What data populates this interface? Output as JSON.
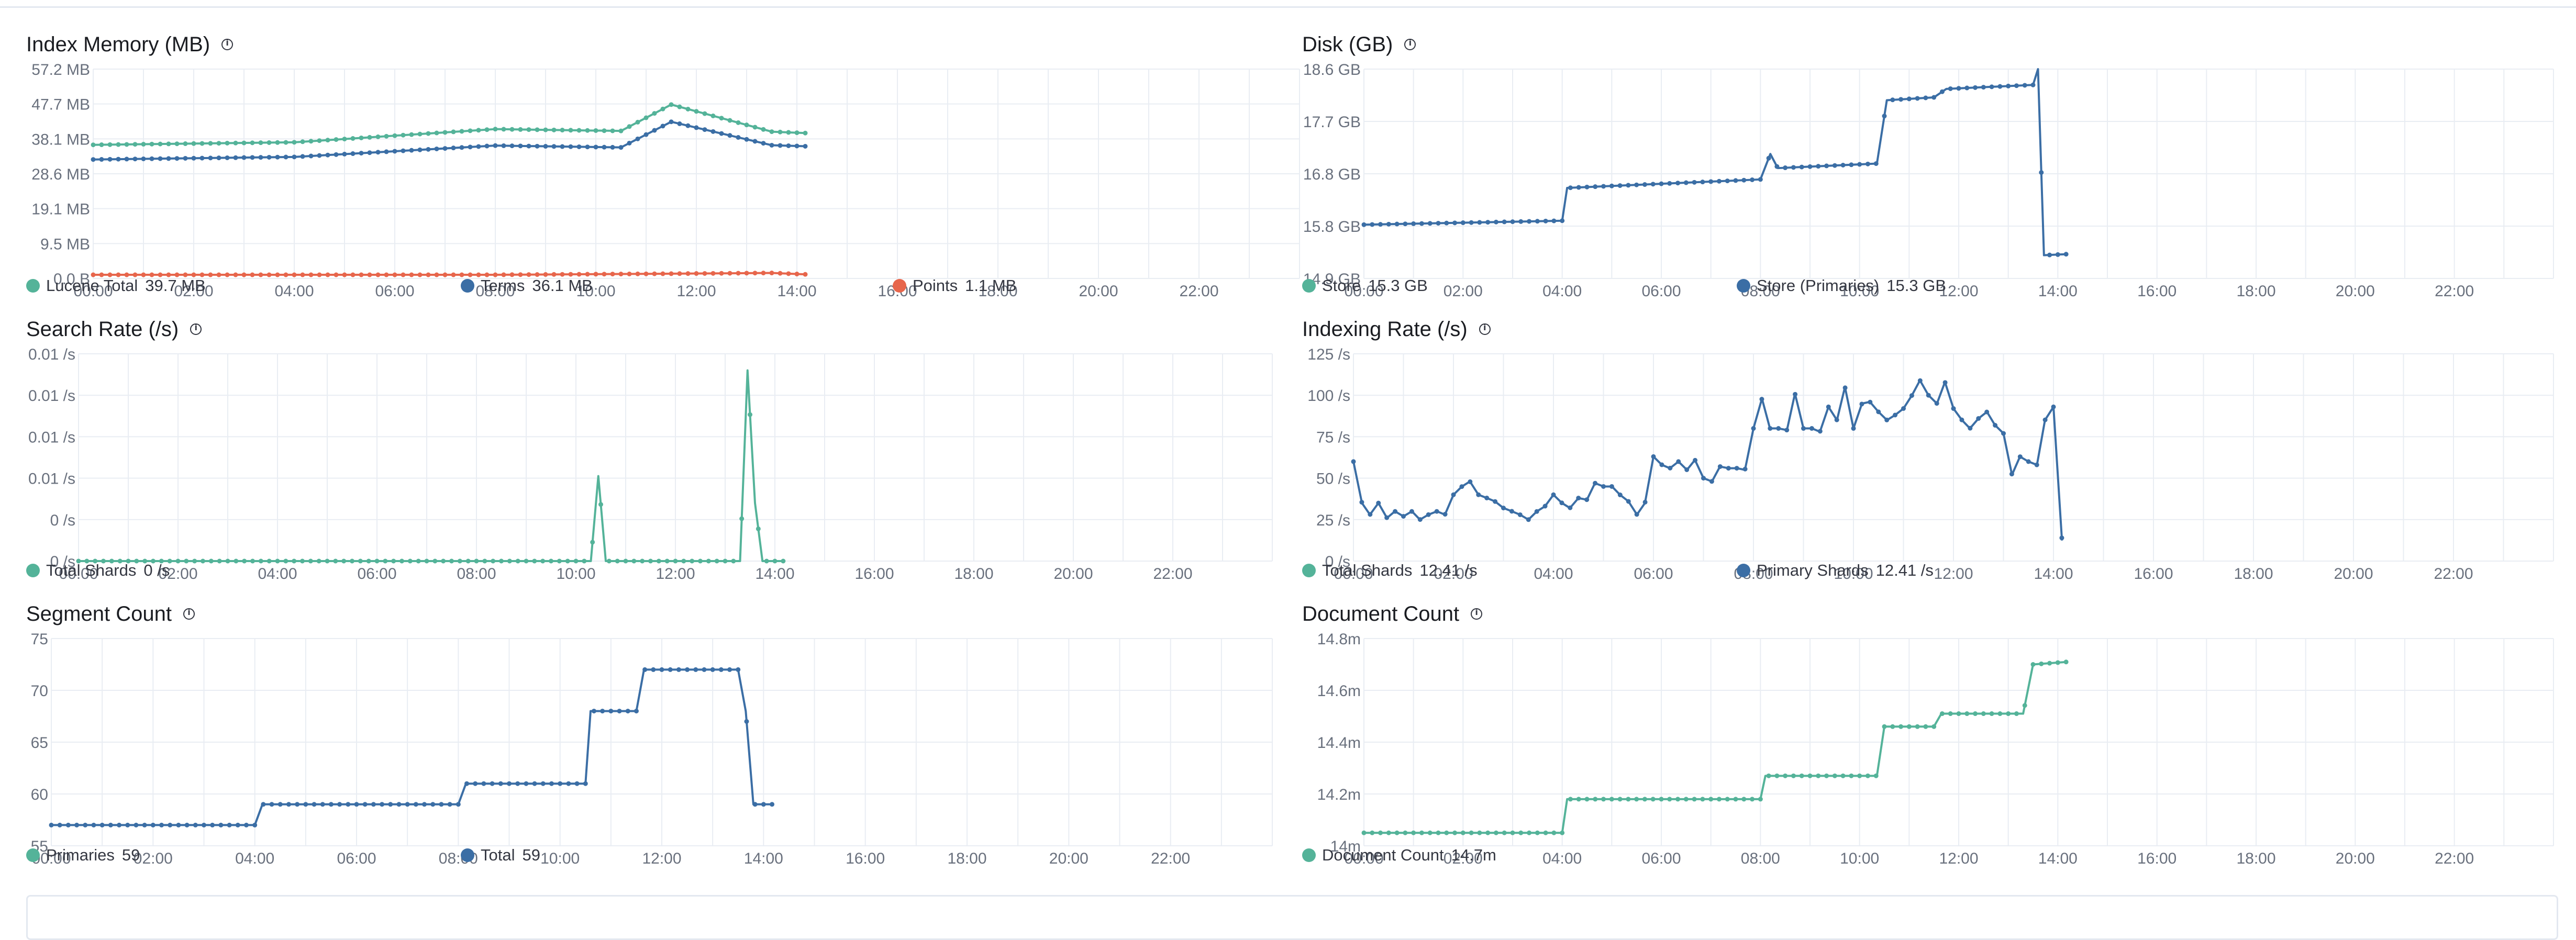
{
  "panels": [
    {
      "id": "index-memory",
      "title": "Index Memory (MB)",
      "legend": [
        {
          "name": "Lucene Total",
          "value": "39.7 MB",
          "color": "#54b399"
        },
        {
          "name": "Terms",
          "value": "36.1 MB",
          "color": "#3b6ea5"
        },
        {
          "name": "Points",
          "value": "1.1 MB",
          "color": "#e7664c"
        }
      ]
    },
    {
      "id": "disk",
      "title": "Disk (GB)",
      "legend": [
        {
          "name": "Store",
          "value": "15.3 GB",
          "color": "#54b399"
        },
        {
          "name": "Store (Primaries)",
          "value": "15.3 GB",
          "color": "#3b6ea5"
        }
      ]
    },
    {
      "id": "search-rate",
      "title": "Search Rate (/s)",
      "legend": [
        {
          "name": "Total Shards",
          "value": "0 /s",
          "color": "#54b399"
        }
      ]
    },
    {
      "id": "indexing-rate",
      "title": "Indexing Rate (/s)",
      "legend": [
        {
          "name": "Total Shards",
          "value": "12.41 /s",
          "color": "#54b399"
        },
        {
          "name": "Primary Shards",
          "value": "12.41 /s",
          "color": "#3b6ea5"
        }
      ]
    },
    {
      "id": "segment-count",
      "title": "Segment Count",
      "legend": [
        {
          "name": "Primaries",
          "value": "59",
          "color": "#54b399"
        },
        {
          "name": "Total",
          "value": "59",
          "color": "#3b6ea5"
        }
      ]
    },
    {
      "id": "document-count",
      "title": "Document Count",
      "legend": [
        {
          "name": "Document Count",
          "value": "14.7m",
          "color": "#54b399"
        }
      ]
    }
  ],
  "chart_data": [
    {
      "type": "line",
      "title": "Index Memory (MB)",
      "x_ticks": [
        "00:00",
        "02:00",
        "04:00",
        "06:00",
        "08:00",
        "10:00",
        "12:00",
        "14:00",
        "16:00",
        "18:00",
        "20:00",
        "22:00"
      ],
      "xlim_hours": [
        0,
        24
      ],
      "y_ticks": [
        "0.0 B",
        "9.5 MB",
        "19.1 MB",
        "28.6 MB",
        "38.1 MB",
        "47.7 MB",
        "57.2 MB"
      ],
      "ylim": [
        0,
        57.2
      ],
      "grid": true,
      "series": [
        {
          "name": "Lucene Total",
          "color": "#54b399",
          "hours": [
            0,
            4,
            8,
            10.5,
            11.5,
            13.5,
            14.2
          ],
          "values": [
            36.5,
            37.2,
            40.8,
            40.3,
            47.5,
            40.1,
            39.7
          ]
        },
        {
          "name": "Terms",
          "color": "#3b6ea5",
          "hours": [
            0,
            4,
            8,
            10.5,
            11.5,
            13.5,
            14.2
          ],
          "values": [
            32.5,
            33.2,
            36.3,
            35.8,
            42.8,
            36.4,
            36.1
          ]
        },
        {
          "name": "Points",
          "color": "#e7664c",
          "hours": [
            0,
            4,
            8,
            11.5,
            13.5,
            14.2
          ],
          "values": [
            1.0,
            1.0,
            1.0,
            1.3,
            1.5,
            1.1
          ]
        }
      ]
    },
    {
      "type": "line",
      "title": "Disk (GB)",
      "x_ticks": [
        "00:00",
        "02:00",
        "04:00",
        "06:00",
        "08:00",
        "10:00",
        "12:00",
        "14:00",
        "16:00",
        "18:00",
        "20:00",
        "22:00"
      ],
      "xlim_hours": [
        0,
        24
      ],
      "y_ticks": [
        "14.9 GB",
        "15.8 GB",
        "16.8 GB",
        "17.7 GB",
        "18.6 GB"
      ],
      "ylim": [
        14.9,
        18.6
      ],
      "grid": true,
      "series": [
        {
          "name": "Store (Primaries)",
          "color": "#3b6ea5",
          "hours": [
            0,
            4,
            4.1,
            8,
            8.2,
            8.35,
            10.35,
            10.55,
            11.5,
            11.75,
            13.5,
            13.6,
            13.72,
            14.2
          ],
          "values": [
            15.85,
            15.92,
            16.5,
            16.65,
            17.1,
            16.85,
            16.93,
            18.05,
            18.1,
            18.25,
            18.32,
            18.6,
            15.31,
            15.33
          ]
        },
        {
          "name": "Store",
          "color": "#54b399",
          "hours": [],
          "values": []
        }
      ]
    },
    {
      "type": "line",
      "title": "Search Rate (/s)",
      "x_ticks": [
        "00:00",
        "02:00",
        "04:00",
        "06:00",
        "08:00",
        "10:00",
        "12:00",
        "14:00",
        "16:00",
        "18:00",
        "20:00",
        "22:00"
      ],
      "xlim_hours": [
        0,
        24
      ],
      "y_ticks": [
        "0 /s",
        "0 /s",
        "0.01 /s",
        "0.01 /s",
        "0.01 /s",
        "0.01 /s"
      ],
      "ylim": [
        0,
        0.01
      ],
      "grid": true,
      "series": [
        {
          "name": "Total Shards",
          "color": "#54b399",
          "hours": [
            0,
            10.3,
            10.45,
            10.6,
            13.3,
            13.45,
            13.6,
            13.75,
            14.2
          ],
          "values": [
            0,
            0,
            0.0041,
            0,
            0,
            0.0092,
            0.0028,
            0,
            0
          ]
        }
      ]
    },
    {
      "type": "line",
      "title": "Indexing Rate (/s)",
      "x_ticks": [
        "00:00",
        "02:00",
        "04:00",
        "06:00",
        "08:00",
        "10:00",
        "12:00",
        "14:00",
        "16:00",
        "18:00",
        "20:00",
        "22:00"
      ],
      "xlim_hours": [
        0,
        24
      ],
      "y_ticks": [
        "0 /s",
        "25 /s",
        "50 /s",
        "75 /s",
        "100 /s",
        "125 /s"
      ],
      "ylim": [
        0,
        125
      ],
      "grid": true,
      "series": [
        {
          "name": "Primary Shards",
          "color": "#3b6ea5",
          "hours": [
            0,
            0.17,
            0.33,
            0.5,
            0.67,
            0.83,
            1,
            1.17,
            1.33,
            1.5,
            1.67,
            1.83,
            2,
            2.17,
            2.33,
            2.5,
            2.67,
            2.83,
            3,
            3.17,
            3.33,
            3.5,
            3.67,
            3.83,
            4,
            4.17,
            4.33,
            4.5,
            4.67,
            4.83,
            5,
            5.17,
            5.33,
            5.5,
            5.67,
            5.83,
            6,
            6.17,
            6.33,
            6.5,
            6.67,
            6.83,
            7,
            7.17,
            7.33,
            7.5,
            7.67,
            7.83,
            8,
            8.17,
            8.33,
            8.5,
            8.67,
            8.83,
            9,
            9.17,
            9.33,
            9.5,
            9.67,
            9.83,
            10,
            10.17,
            10.33,
            10.5,
            10.67,
            10.83,
            11,
            11.17,
            11.33,
            11.5,
            11.67,
            11.83,
            12,
            12.17,
            12.33,
            12.5,
            12.67,
            12.83,
            13,
            13.17,
            13.33,
            13.5,
            13.67,
            13.83,
            14,
            14.17
          ],
          "values": [
            60,
            35,
            28,
            35,
            26,
            30,
            27,
            30,
            25,
            28,
            30,
            28,
            40,
            45,
            48,
            40,
            38,
            36,
            32,
            30,
            28,
            25,
            30,
            33,
            40,
            35,
            32,
            38,
            37,
            47,
            45,
            45,
            40,
            36,
            28,
            35,
            63,
            58,
            56,
            60,
            55,
            61,
            50,
            48,
            57,
            56,
            56,
            55,
            80,
            98,
            80,
            80,
            79,
            101,
            80,
            80,
            78,
            93,
            85,
            105,
            80,
            95,
            96,
            90,
            85,
            88,
            92,
            100,
            109,
            100,
            95,
            108,
            92,
            85,
            80,
            86,
            90,
            82,
            77,
            52,
            63,
            60,
            58,
            85,
            93,
            12.4
          ]
        },
        {
          "name": "Total Shards",
          "color": "#54b399",
          "hours": [],
          "values": []
        }
      ]
    },
    {
      "type": "line",
      "title": "Segment Count",
      "x_ticks": [
        "00:00",
        "02:00",
        "04:00",
        "06:00",
        "08:00",
        "10:00",
        "12:00",
        "14:00",
        "16:00",
        "18:00",
        "20:00",
        "22:00"
      ],
      "xlim_hours": [
        0,
        24
      ],
      "y_ticks": [
        "55",
        "60",
        "65",
        "70",
        "75"
      ],
      "ylim": [
        55,
        75
      ],
      "grid": true,
      "series": [
        {
          "name": "Total",
          "color": "#3b6ea5",
          "hours": [
            0,
            4,
            4.15,
            8,
            8.15,
            10.5,
            10.6,
            11.5,
            11.65,
            13.5,
            13.65,
            13.8,
            14.2
          ],
          "values": [
            57,
            57,
            59,
            59,
            61,
            61,
            68,
            68,
            72,
            72,
            68,
            59,
            59
          ]
        },
        {
          "name": "Primaries",
          "color": "#54b399",
          "hours": [],
          "values": []
        }
      ]
    },
    {
      "type": "line",
      "title": "Document Count",
      "x_ticks": [
        "00:00",
        "02:00",
        "04:00",
        "06:00",
        "08:00",
        "10:00",
        "12:00",
        "14:00",
        "16:00",
        "18:00",
        "20:00",
        "22:00"
      ],
      "xlim_hours": [
        0,
        24
      ],
      "y_ticks": [
        "14m",
        "14.2m",
        "14.4m",
        "14.6m",
        "14.8m"
      ],
      "ylim": [
        14.0,
        14.8
      ],
      "grid": true,
      "series": [
        {
          "name": "Document Count",
          "color": "#54b399",
          "hours": [
            0,
            4,
            4.1,
            8,
            8.1,
            10.35,
            10.5,
            11.5,
            11.65,
            13.3,
            13.5,
            14.2
          ],
          "values": [
            14.05,
            14.05,
            14.18,
            14.18,
            14.27,
            14.27,
            14.46,
            14.46,
            14.51,
            14.51,
            14.7,
            14.71
          ]
        }
      ]
    }
  ]
}
